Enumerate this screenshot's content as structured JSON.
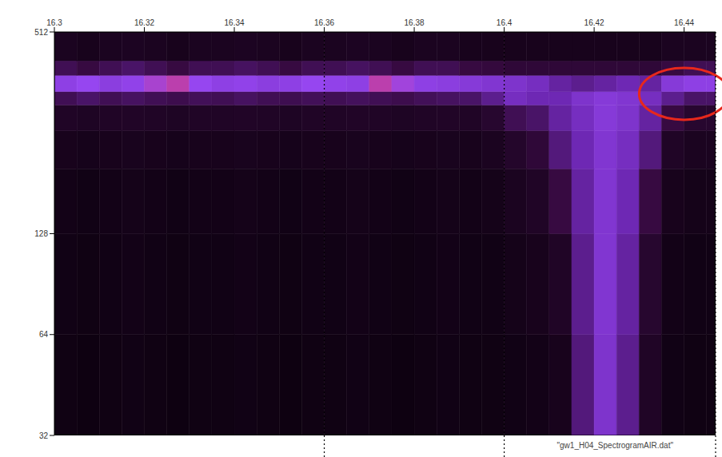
{
  "chart_data": {
    "type": "heatmap",
    "label": "\"gw1_H04_SpectrogramAIR.dat\"",
    "log": "y",
    "xlim": [
      16.3,
      16.447
    ],
    "ylim": [
      32,
      512
    ],
    "xticks": [
      16.3,
      16.32,
      16.34,
      16.36,
      16.38,
      16.4,
      16.42,
      16.44
    ],
    "yticks": [
      32,
      64,
      128,
      512
    ],
    "zlim": [
      0,
      1
    ],
    "x_edges": [
      16.3,
      16.305,
      16.31,
      16.315,
      16.32,
      16.325,
      16.33,
      16.335,
      16.34,
      16.345,
      16.35,
      16.355,
      16.36,
      16.365,
      16.37,
      16.375,
      16.38,
      16.385,
      16.39,
      16.395,
      16.4,
      16.405,
      16.41,
      16.415,
      16.42,
      16.425,
      16.43,
      16.435,
      16.44,
      16.445,
      16.447
    ],
    "y_edges": [
      32,
      64,
      128,
      200,
      260,
      310,
      340,
      380,
      420,
      512
    ],
    "z": [
      [
        0.05,
        0.04,
        0.05,
        0.06,
        0.05,
        0.04,
        0.05,
        0.05,
        0.06,
        0.05,
        0.04,
        0.05,
        0.05,
        0.06,
        0.05,
        0.04,
        0.05,
        0.06,
        0.05,
        0.05,
        0.06,
        0.07,
        0.1,
        0.45,
        0.7,
        0.5,
        0.15,
        0.06,
        0.05,
        0.05
      ],
      [
        0.06,
        0.05,
        0.06,
        0.07,
        0.06,
        0.05,
        0.06,
        0.06,
        0.07,
        0.06,
        0.05,
        0.06,
        0.06,
        0.07,
        0.06,
        0.05,
        0.06,
        0.07,
        0.06,
        0.06,
        0.08,
        0.1,
        0.15,
        0.5,
        0.72,
        0.55,
        0.2,
        0.07,
        0.06,
        0.06
      ],
      [
        0.07,
        0.06,
        0.07,
        0.08,
        0.07,
        0.06,
        0.07,
        0.07,
        0.08,
        0.07,
        0.06,
        0.07,
        0.07,
        0.08,
        0.07,
        0.06,
        0.07,
        0.08,
        0.07,
        0.08,
        0.12,
        0.15,
        0.3,
        0.55,
        0.72,
        0.6,
        0.3,
        0.1,
        0.08,
        0.08
      ],
      [
        0.1,
        0.09,
        0.1,
        0.11,
        0.1,
        0.09,
        0.1,
        0.1,
        0.11,
        0.1,
        0.09,
        0.1,
        0.1,
        0.11,
        0.1,
        0.09,
        0.1,
        0.11,
        0.1,
        0.12,
        0.18,
        0.25,
        0.45,
        0.6,
        0.72,
        0.65,
        0.45,
        0.15,
        0.12,
        0.12
      ],
      [
        0.15,
        0.14,
        0.15,
        0.16,
        0.15,
        0.14,
        0.15,
        0.15,
        0.16,
        0.15,
        0.14,
        0.15,
        0.15,
        0.16,
        0.15,
        0.14,
        0.15,
        0.16,
        0.15,
        0.2,
        0.35,
        0.4,
        0.55,
        0.65,
        0.75,
        0.7,
        0.55,
        0.3,
        0.2,
        0.2
      ],
      [
        0.35,
        0.4,
        0.35,
        0.38,
        0.35,
        0.33,
        0.36,
        0.35,
        0.38,
        0.35,
        0.34,
        0.36,
        0.35,
        0.37,
        0.35,
        0.33,
        0.36,
        0.38,
        0.4,
        0.5,
        0.65,
        0.6,
        0.6,
        0.7,
        0.75,
        0.72,
        0.65,
        0.5,
        0.4,
        0.4
      ],
      [
        0.8,
        0.85,
        0.78,
        0.82,
        0.9,
        0.95,
        0.85,
        0.8,
        0.82,
        0.78,
        0.8,
        0.85,
        0.82,
        0.8,
        0.95,
        0.88,
        0.8,
        0.78,
        0.75,
        0.72,
        0.7,
        0.65,
        0.55,
        0.5,
        0.55,
        0.6,
        0.55,
        0.75,
        0.8,
        0.8
      ],
      [
        0.35,
        0.3,
        0.35,
        0.4,
        0.35,
        0.3,
        0.35,
        0.35,
        0.38,
        0.35,
        0.3,
        0.35,
        0.35,
        0.38,
        0.35,
        0.3,
        0.35,
        0.35,
        0.3,
        0.28,
        0.25,
        0.25,
        0.25,
        0.25,
        0.25,
        0.25,
        0.25,
        0.3,
        0.35,
        0.35
      ],
      [
        0.12,
        0.1,
        0.12,
        0.13,
        0.12,
        0.1,
        0.12,
        0.12,
        0.13,
        0.12,
        0.1,
        0.12,
        0.12,
        0.13,
        0.12,
        0.1,
        0.12,
        0.12,
        0.1,
        0.1,
        0.1,
        0.1,
        0.1,
        0.1,
        0.1,
        0.1,
        0.1,
        0.12,
        0.12,
        0.12
      ]
    ],
    "annotations": {
      "vlines": [
        16.36,
        16.4,
        16.447
      ],
      "ellipse": {
        "x": [
          16.43,
          16.45
        ],
        "y": [
          280,
          400
        ],
        "color": "#e8281c"
      }
    }
  }
}
